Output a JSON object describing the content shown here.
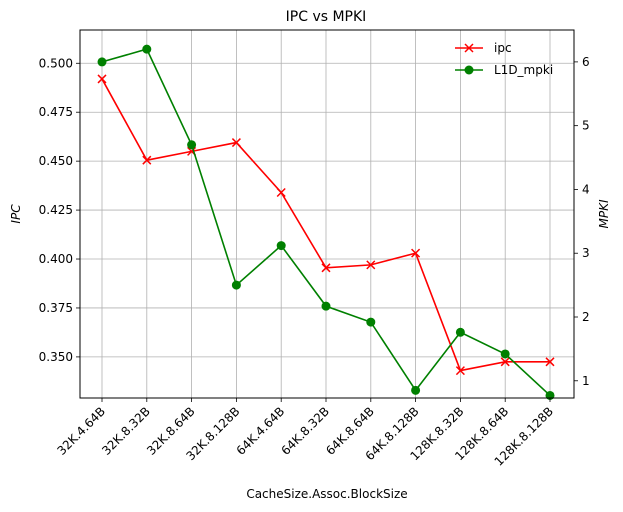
{
  "chart_data": {
    "type": "line",
    "title": "IPC vs MPKI",
    "xlabel": "CacheSize.Assoc.BlockSize",
    "categories": [
      "32K.4.64B",
      "32K.8.32B",
      "32K.8.64B",
      "32K.8.128B",
      "64K.4.64B",
      "64K.8.32B",
      "64K.8.64B",
      "64K.8.128B",
      "128K.8.32B",
      "128K.8.64B",
      "128K.8.128B"
    ],
    "left_axis": {
      "label": "IPC",
      "ylim": [
        0.329,
        0.517
      ],
      "ticks": [
        0.35,
        0.375,
        0.4,
        0.425,
        0.45,
        0.475,
        0.5
      ],
      "tick_labels": [
        "0.350",
        "0.375",
        "0.400",
        "0.425",
        "0.450",
        "0.475",
        "0.500"
      ]
    },
    "right_axis": {
      "label": "MPKI",
      "ylim": [
        0.73,
        6.5
      ],
      "ticks": [
        1,
        2,
        3,
        4,
        5,
        6
      ],
      "tick_labels": [
        "1",
        "2",
        "3",
        "4",
        "5",
        "6"
      ]
    },
    "series": [
      {
        "name": "ipc",
        "axis": "left",
        "color": "#ff0000",
        "marker": "x",
        "values": [
          0.492,
          0.4505,
          0.455,
          0.4595,
          0.434,
          0.3955,
          0.397,
          0.403,
          0.343,
          0.3475,
          0.3475
        ]
      },
      {
        "name": "L1D_mpki",
        "axis": "right",
        "color": "#008000",
        "marker": "o",
        "values": [
          6.0,
          6.2,
          4.7,
          2.5,
          3.12,
          2.17,
          1.92,
          0.85,
          1.76,
          1.42,
          0.77
        ]
      }
    ],
    "grid": true,
    "legend_position": "top-right"
  }
}
